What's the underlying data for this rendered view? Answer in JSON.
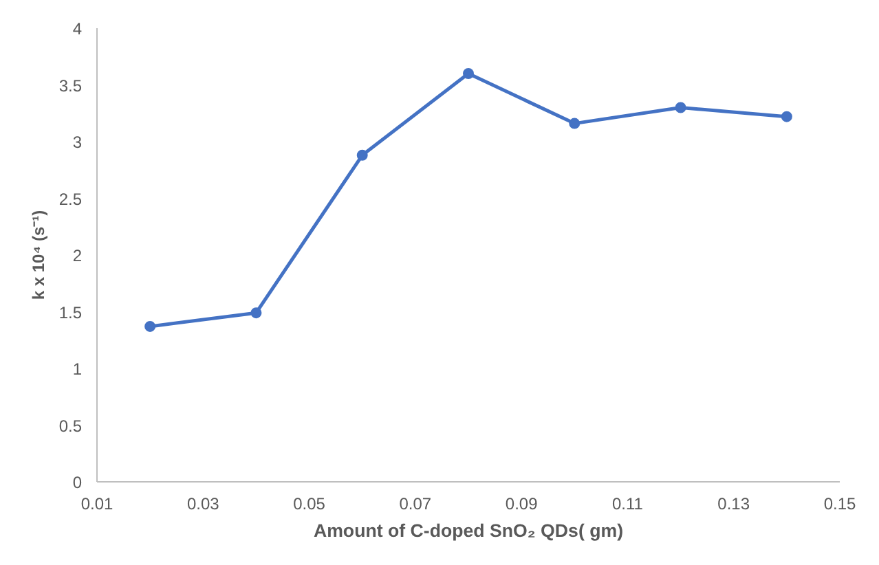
{
  "chart_data": {
    "type": "line",
    "xlabel": "Amount of C-doped SnO₂ QDs( gm)",
    "ylabel": "k x 10⁴ (s⁻¹)",
    "x": [
      0.02,
      0.04,
      0.06,
      0.08,
      0.1,
      0.12,
      0.14
    ],
    "series": [
      {
        "color": "#4472c4",
        "values": [
          1.37,
          1.49,
          2.88,
          3.6,
          3.16,
          3.3,
          3.22
        ]
      }
    ],
    "xlim": [
      0.01,
      0.15
    ],
    "xticks": [
      0.01,
      0.03,
      0.05,
      0.07,
      0.09,
      0.11,
      0.13,
      0.15
    ],
    "ylim": [
      0,
      4
    ],
    "yticks": [
      0,
      0.5,
      1,
      1.5,
      2,
      2.5,
      3,
      3.5,
      4
    ],
    "grid": false,
    "marker": "circle",
    "line_style": "solid"
  }
}
